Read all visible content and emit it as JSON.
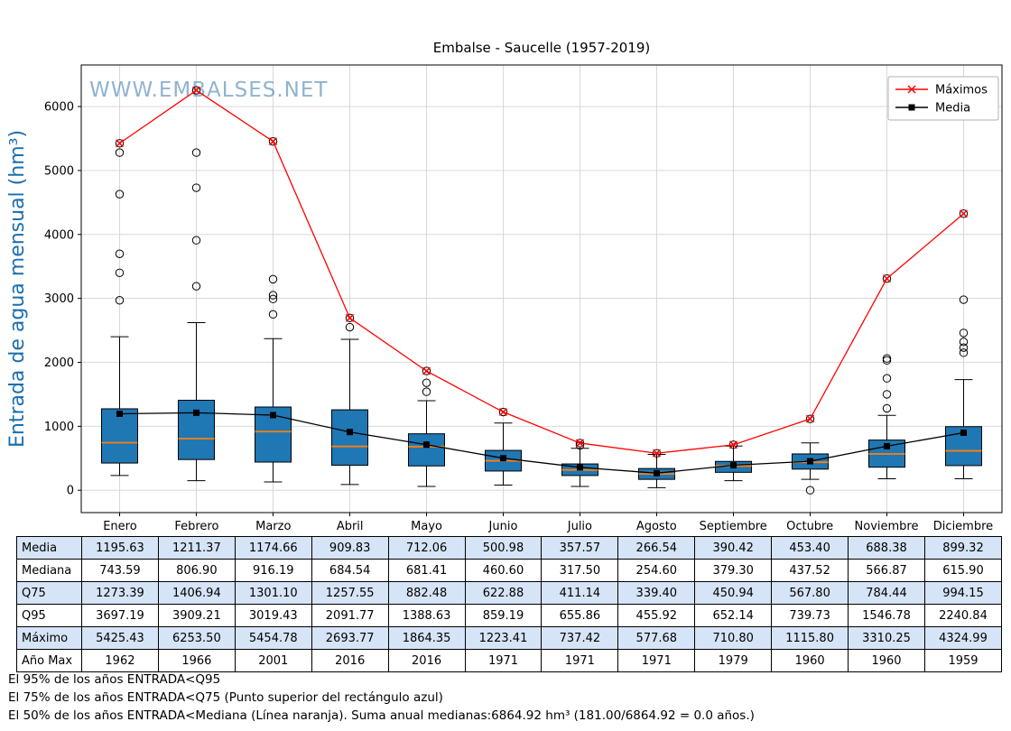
{
  "watermark": "WWW.EMBALSES.NET",
  "chart_data": {
    "type": "boxplot+line",
    "title": "Embalse - Saucelle (1957-2019)",
    "ylabel": "Entrada de agua mensual (hm³)",
    "categories": [
      "Enero",
      "Febrero",
      "Marzo",
      "Abril",
      "Mayo",
      "Junio",
      "Julio",
      "Agosto",
      "Septiembre",
      "Octubre",
      "Noviembre",
      "Diciembre"
    ],
    "ylim": [
      -350,
      6650
    ],
    "yticks": [
      0,
      1000,
      2000,
      3000,
      4000,
      5000,
      6000
    ],
    "grid": true,
    "legend": {
      "position": "top-right",
      "entries": [
        {
          "label": "Máximos",
          "color": "#ff0000",
          "marker": "x"
        },
        {
          "label": "Media",
          "color": "#000000",
          "marker": "square"
        }
      ]
    },
    "series": [
      {
        "name": "Máximos",
        "style": "line+x",
        "values": [
          5425.43,
          6253.5,
          5454.78,
          2693.77,
          1864.35,
          1223.41,
          737.42,
          577.68,
          710.8,
          1115.8,
          3310.25,
          4324.99
        ]
      },
      {
        "name": "Media",
        "style": "line+square",
        "values": [
          1195.63,
          1211.37,
          1174.66,
          909.83,
          712.06,
          500.98,
          357.57,
          266.54,
          390.42,
          453.4,
          688.38,
          899.32
        ]
      }
    ],
    "boxes": [
      {
        "month": "Enero",
        "whisker_low": 230,
        "q1": 425,
        "median": 743.59,
        "q3": 1273.39,
        "whisker_high": 2400,
        "outliers": [
          2970,
          3400,
          3697,
          4630,
          5280,
          5425.43
        ]
      },
      {
        "month": "Febrero",
        "whisker_low": 150,
        "q1": 480,
        "median": 806.9,
        "q3": 1406.94,
        "whisker_high": 2620,
        "outliers": [
          3190,
          3909,
          4730,
          5280,
          6253.5
        ]
      },
      {
        "month": "Marzo",
        "whisker_low": 130,
        "q1": 440,
        "median": 916.19,
        "q3": 1301.1,
        "whisker_high": 2370,
        "outliers": [
          2750,
          2990,
          3050,
          3300,
          5454.78
        ]
      },
      {
        "month": "Abril",
        "whisker_low": 90,
        "q1": 390,
        "median": 684.54,
        "q3": 1257.55,
        "whisker_high": 2360,
        "outliers": [
          2550,
          2693.77
        ]
      },
      {
        "month": "Mayo",
        "whisker_low": 60,
        "q1": 380,
        "median": 681.41,
        "q3": 882.48,
        "whisker_high": 1400,
        "outliers": [
          1540,
          1680,
          1864.35
        ]
      },
      {
        "month": "Junio",
        "whisker_low": 80,
        "q1": 300,
        "median": 460.6,
        "q3": 622.88,
        "whisker_high": 1050,
        "outliers": [
          1223.41
        ]
      },
      {
        "month": "Julio",
        "whisker_low": 60,
        "q1": 230,
        "median": 317.5,
        "q3": 411.14,
        "whisker_high": 655,
        "outliers": [
          700,
          737.42
        ]
      },
      {
        "month": "Agosto",
        "whisker_low": 40,
        "q1": 170,
        "median": 254.6,
        "q3": 339.4,
        "whisker_high": 560,
        "outliers": [
          577.68
        ]
      },
      {
        "month": "Septiembre",
        "whisker_low": 150,
        "q1": 280,
        "median": 379.3,
        "q3": 450.94,
        "whisker_high": 690,
        "outliers": [
          710.8
        ]
      },
      {
        "month": "Octubre",
        "whisker_low": 170,
        "q1": 330,
        "median": 437.52,
        "q3": 567.8,
        "whisker_high": 740,
        "outliers": [
          0,
          1115.8
        ]
      },
      {
        "month": "Noviembre",
        "whisker_low": 180,
        "q1": 360,
        "median": 566.87,
        "q3": 784.44,
        "whisker_high": 1170,
        "outliers": [
          1280,
          1500,
          1750,
          2030,
          2060,
          3310.25
        ]
      },
      {
        "month": "Diciembre",
        "whisker_low": 180,
        "q1": 385,
        "median": 615.9,
        "q3": 994.15,
        "whisker_high": 1730,
        "outliers": [
          2150,
          2230,
          2320,
          2460,
          2980,
          4324.99
        ]
      }
    ],
    "colors": {
      "box_fill": "#1f77b4",
      "median": "#ff7f0e",
      "max_line": "#ff0000",
      "mean_line": "#000000",
      "grid": "#d4d4d4",
      "ylabel": "#1a6faf",
      "watermark": "#4682b4"
    }
  },
  "table": {
    "columns": [
      "Enero",
      "Febrero",
      "Marzo",
      "Abril",
      "Mayo",
      "Junio",
      "Julio",
      "Agosto",
      "Septiembre",
      "Octubre",
      "Noviembre",
      "Diciembre"
    ],
    "rows": [
      {
        "label": "Media",
        "values": [
          "1195.63",
          "1211.37",
          "1174.66",
          "909.83",
          "712.06",
          "500.98",
          "357.57",
          "266.54",
          "390.42",
          "453.40",
          "688.38",
          "899.32"
        ]
      },
      {
        "label": "Mediana",
        "values": [
          "743.59",
          "806.90",
          "916.19",
          "684.54",
          "681.41",
          "460.60",
          "317.50",
          "254.60",
          "379.30",
          "437.52",
          "566.87",
          "615.90"
        ]
      },
      {
        "label": "Q75",
        "values": [
          "1273.39",
          "1406.94",
          "1301.10",
          "1257.55",
          "882.48",
          "622.88",
          "411.14",
          "339.40",
          "450.94",
          "567.80",
          "784.44",
          "994.15"
        ]
      },
      {
        "label": "Q95",
        "values": [
          "3697.19",
          "3909.21",
          "3019.43",
          "2091.77",
          "1388.63",
          "859.19",
          "655.86",
          "455.92",
          "652.14",
          "739.73",
          "1546.78",
          "2240.84"
        ]
      },
      {
        "label": "Máximo",
        "values": [
          "5425.43",
          "6253.50",
          "5454.78",
          "2693.77",
          "1864.35",
          "1223.41",
          "737.42",
          "577.68",
          "710.80",
          "1115.80",
          "3310.25",
          "4324.99"
        ]
      },
      {
        "label": "Año Max",
        "values": [
          "1962",
          "1966",
          "2001",
          "2016",
          "2016",
          "1971",
          "1971",
          "1971",
          "1979",
          "1960",
          "1960",
          "1959"
        ]
      }
    ]
  },
  "footnotes": [
    "El 95% de los años ENTRADA<Q95",
    "El 75% de los años ENTRADA<Q75 (Punto superior del rectángulo azul)",
    "El 50% de los años ENTRADA<Mediana (Línea naranja). Suma anual medianas:6864.92 hm³ (181.00/6864.92 = 0.0 años.)"
  ]
}
